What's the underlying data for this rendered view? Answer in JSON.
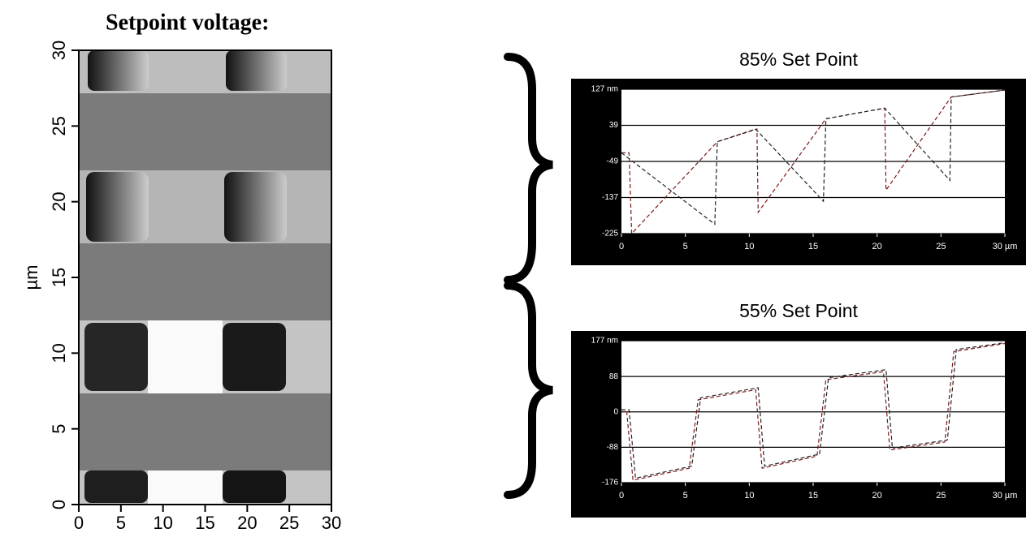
{
  "chart_data": [
    {
      "type": "image",
      "title": "Setpoint voltage:",
      "ylabel": "µm",
      "xlim": [
        0,
        30
      ],
      "ylim": [
        0,
        30
      ],
      "xticks": [
        0,
        5,
        10,
        15,
        20,
        25,
        30
      ],
      "yticks": [
        0,
        5,
        10,
        15,
        20,
        25,
        30
      ]
    },
    {
      "type": "line",
      "title": "85% Set Point",
      "xlim": [
        0,
        30
      ],
      "ylim": [
        -225,
        127
      ],
      "xticks": [
        0,
        5,
        10,
        15,
        20,
        25,
        {
          "value": 30,
          "label": "30 µm"
        }
      ],
      "yticks": [
        -225,
        -137,
        -49,
        39,
        {
          "value": 127,
          "label": "127 nm"
        }
      ],
      "grid": true,
      "series": [
        {
          "color": "#7a1a1a",
          "x": [
            0,
            0.6,
            0.8,
            7.5,
            10.6,
            10.7,
            16,
            20.6,
            20.7,
            25.8,
            30
          ],
          "values": [
            -28,
            -28,
            -225,
            -1,
            30,
            -173,
            55,
            81,
            -119,
            108,
            125
          ]
        },
        {
          "color": "#222222",
          "x": [
            0,
            7.3,
            7.5,
            10.5,
            15.8,
            16,
            20.6,
            25.7,
            25.8,
            30
          ],
          "values": [
            -28,
            -202,
            -1,
            30,
            -146,
            55,
            81,
            -95,
            108,
            125
          ]
        }
      ]
    },
    {
      "type": "line",
      "title": "55% Set Point",
      "xlim": [
        0,
        30
      ],
      "ylim": [
        -176,
        177
      ],
      "xticks": [
        0,
        5,
        10,
        15,
        20,
        25,
        {
          "value": 30,
          "label": "30 µm"
        }
      ],
      "yticks": [
        -176,
        -88,
        0,
        88,
        {
          "value": 177,
          "label": "177 nm"
        }
      ],
      "grid": true,
      "series": [
        {
          "color": "#7a1a1a",
          "x": [
            0,
            0.4,
            0.9,
            5.3,
            6,
            10.5,
            11,
            15.3,
            16,
            20.5,
            21,
            25.3,
            26,
            30
          ],
          "values": [
            5,
            5,
            -170,
            -140,
            30,
            55,
            -140,
            -110,
            80,
            100,
            -95,
            -75,
            150,
            170
          ]
        },
        {
          "color": "#222222",
          "x": [
            0,
            0.6,
            1.1,
            5.5,
            6.2,
            10.7,
            11.2,
            15.5,
            16.2,
            20.7,
            21.2,
            25.5,
            26.2,
            30
          ],
          "values": [
            5,
            5,
            -165,
            -135,
            35,
            60,
            -135,
            -105,
            85,
            105,
            -90,
            -70,
            155,
            172
          ]
        }
      ]
    }
  ]
}
